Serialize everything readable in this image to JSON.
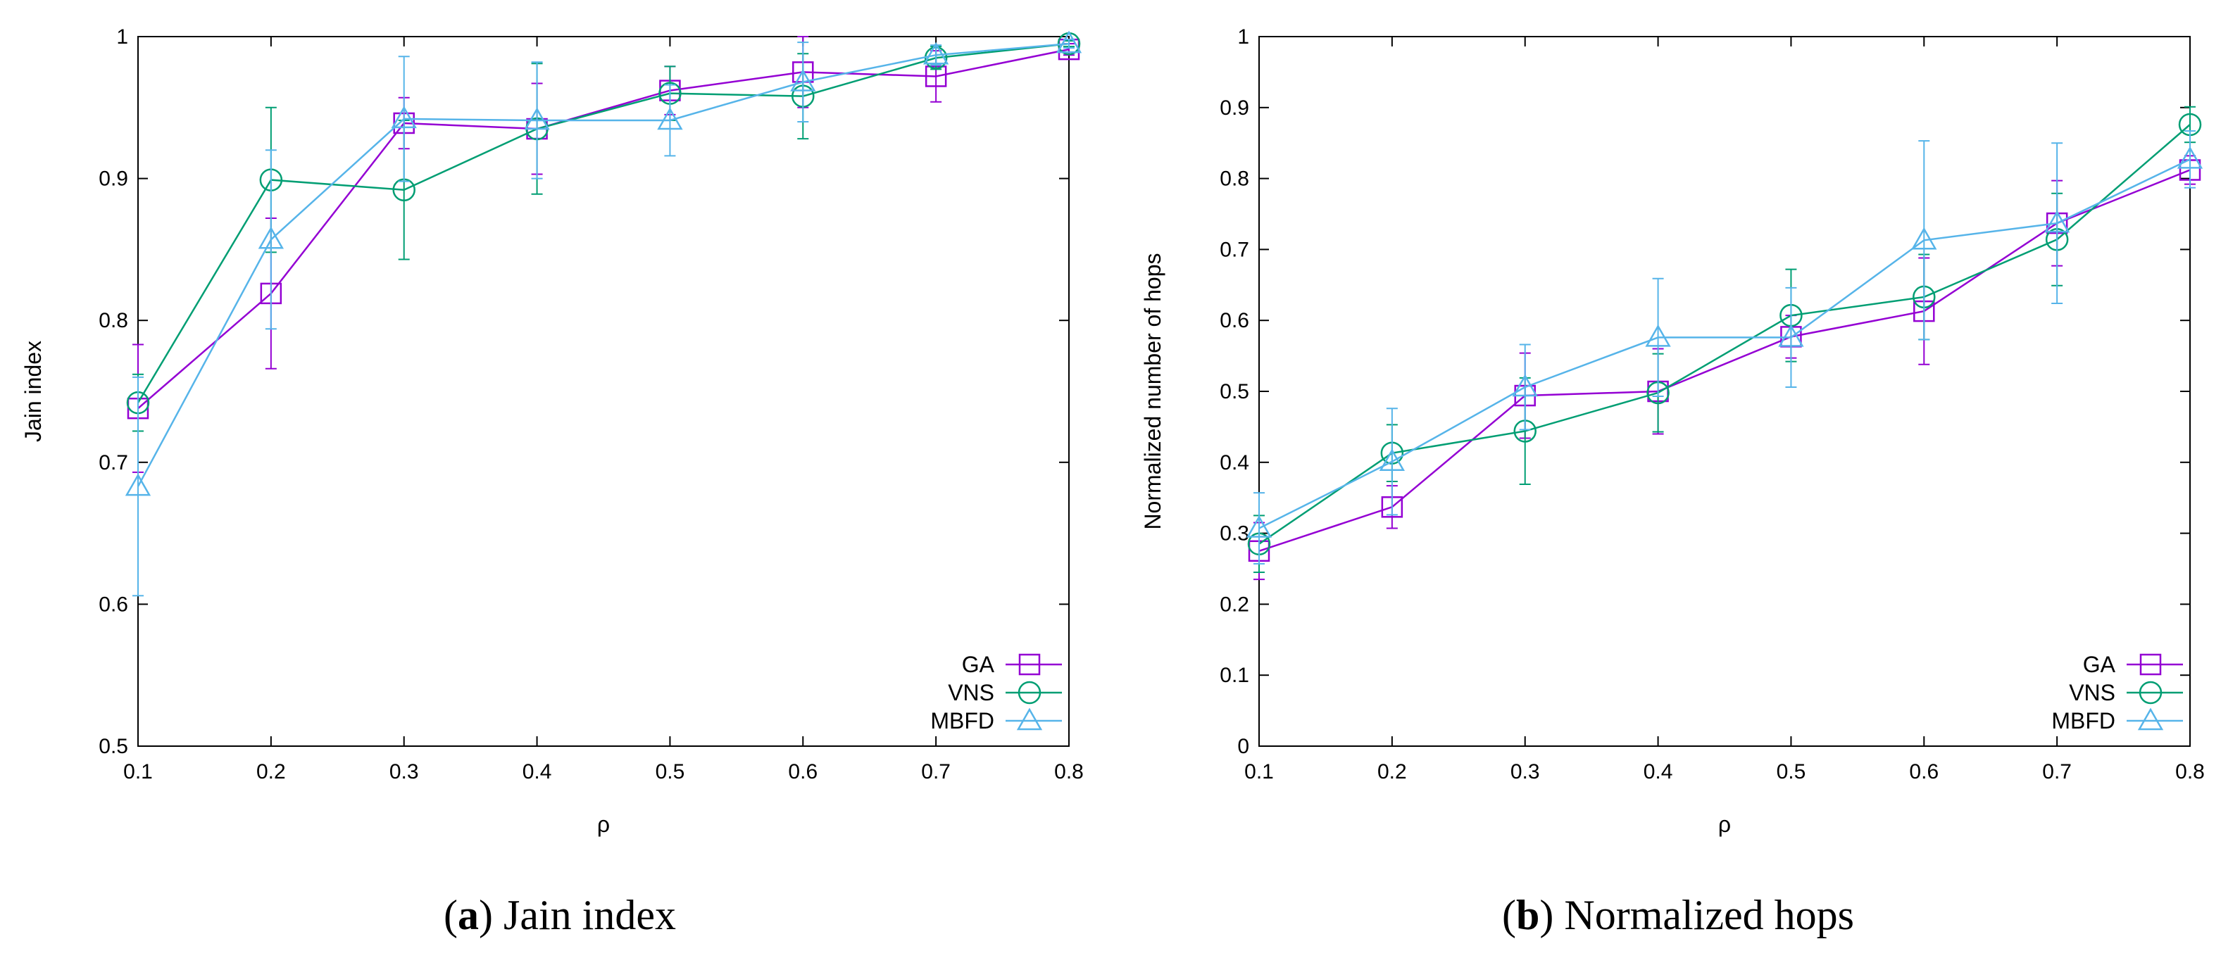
{
  "chart_data": [
    {
      "type": "line",
      "caption_letter": "a",
      "caption_text": " Jain index",
      "xlabel": "ρ",
      "ylabel": "Jain index",
      "x": [
        0.1,
        0.2,
        0.3,
        0.4,
        0.5,
        0.6,
        0.7,
        0.8
      ],
      "xticks": [
        "0.1",
        "0.2",
        "0.3",
        "0.4",
        "0.5",
        "0.6",
        "0.7",
        "0.8"
      ],
      "xlim": [
        0.1,
        0.8
      ],
      "ylim": [
        0.5,
        1.0
      ],
      "yticks": [
        "0.5",
        "0.6",
        "0.7",
        "0.8",
        "0.9",
        "1"
      ],
      "legend_position": "bottom-right",
      "series": [
        {
          "name": "GA",
          "marker": "square",
          "color": "#9400d3",
          "values": [
            0.738,
            0.819,
            0.939,
            0.935,
            0.962,
            0.975,
            0.972,
            0.991
          ],
          "err": [
            0.045,
            0.053,
            0.018,
            0.032,
            0.017,
            0.025,
            0.018,
            0.004
          ]
        },
        {
          "name": "VNS",
          "marker": "circle",
          "color": "#009e73",
          "values": [
            0.742,
            0.899,
            0.892,
            0.935,
            0.96,
            0.958,
            0.985,
            0.995
          ],
          "err": [
            0.02,
            0.051,
            0.049,
            0.046,
            0.019,
            0.03,
            0.008,
            0.002
          ]
        },
        {
          "name": "MBFD",
          "marker": "triangle",
          "color": "#56b4e9",
          "values": [
            0.683,
            0.857,
            0.942,
            0.941,
            0.941,
            0.968,
            0.987,
            0.995
          ],
          "err": [
            0.077,
            0.063,
            0.044,
            0.041,
            0.025,
            0.028,
            0.007,
            0.003
          ]
        }
      ]
    },
    {
      "type": "line",
      "caption_letter": "b",
      "caption_text": " Normalized hops",
      "xlabel": "ρ",
      "ylabel": "Normalized number of hops",
      "x": [
        0.1,
        0.2,
        0.3,
        0.4,
        0.5,
        0.6,
        0.7,
        0.8
      ],
      "xticks": [
        "0.1",
        "0.2",
        "0.3",
        "0.4",
        "0.5",
        "0.6",
        "0.7",
        "0.8"
      ],
      "xlim": [
        0.1,
        0.8
      ],
      "ylim": [
        0,
        1.0
      ],
      "yticks": [
        "0",
        "0.1",
        "0.2",
        "0.3",
        "0.4",
        "0.5",
        "0.6",
        "0.7",
        "0.8",
        "0.9",
        "1"
      ],
      "legend_position": "bottom-right",
      "series": [
        {
          "name": "GA",
          "marker": "square",
          "color": "#9400d3",
          "values": [
            0.275,
            0.337,
            0.494,
            0.5,
            0.577,
            0.613,
            0.737,
            0.812
          ],
          "err": [
            0.04,
            0.03,
            0.06,
            0.06,
            0.03,
            0.075,
            0.06,
            0.02
          ]
        },
        {
          "name": "VNS",
          "marker": "circle",
          "color": "#009e73",
          "values": [
            0.285,
            0.413,
            0.444,
            0.498,
            0.607,
            0.633,
            0.714,
            0.876
          ],
          "err": [
            0.04,
            0.04,
            0.075,
            0.055,
            0.065,
            0.06,
            0.065,
            0.025
          ]
        },
        {
          "name": "MBFD",
          "marker": "triangle",
          "color": "#56b4e9",
          "values": [
            0.307,
            0.401,
            0.506,
            0.576,
            0.576,
            0.713,
            0.737,
            0.827
          ],
          "err": [
            0.05,
            0.075,
            0.06,
            0.083,
            0.07,
            0.14,
            0.113,
            0.04
          ]
        }
      ]
    }
  ]
}
